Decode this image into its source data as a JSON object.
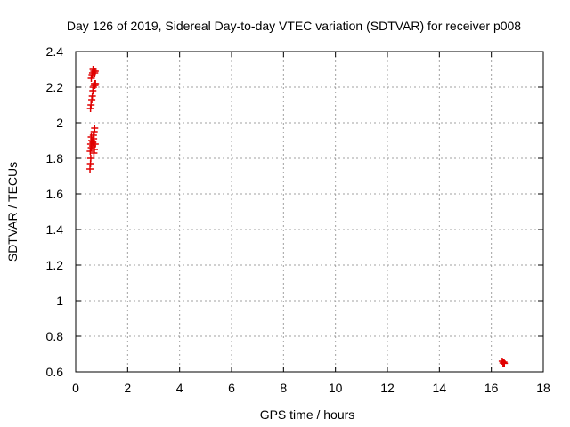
{
  "chart_data": {
    "type": "scatter",
    "title": "Day 126 of 2019, Sidereal Day-to-day VTEC variation (SDTVAR) for receiver p008",
    "xlabel": "GPS time / hours",
    "ylabel": "SDTVAR / TECUs",
    "xlim": [
      0,
      18
    ],
    "ylim": [
      0.6,
      2.4
    ],
    "xticks": [
      0,
      2,
      4,
      6,
      8,
      10,
      12,
      14,
      16,
      18
    ],
    "yticks": [
      0.6,
      0.8,
      1.0,
      1.2,
      1.4,
      1.6,
      1.8,
      2.0,
      2.2,
      2.4
    ],
    "ytick_labels": [
      "0.6",
      "0.8",
      "1",
      "1.2",
      "1.4",
      "1.6",
      "1.8",
      "2",
      "2.2",
      "2.4"
    ],
    "grid": true,
    "marker": "+",
    "marker_color": "#e00000",
    "series": [
      {
        "name": "p008",
        "points": [
          [
            0.55,
            1.74
          ],
          [
            0.57,
            1.77
          ],
          [
            0.58,
            1.8
          ],
          [
            0.56,
            1.84
          ],
          [
            0.6,
            1.86
          ],
          [
            0.58,
            1.88
          ],
          [
            0.62,
            1.9
          ],
          [
            0.6,
            1.92
          ],
          [
            0.65,
            1.87
          ],
          [
            0.66,
            1.89
          ],
          [
            0.7,
            1.83
          ],
          [
            0.72,
            1.85
          ],
          [
            0.68,
            1.93
          ],
          [
            0.71,
            1.95
          ],
          [
            0.73,
            1.97
          ],
          [
            0.69,
            1.91
          ],
          [
            0.75,
            1.88
          ],
          [
            0.57,
            2.08
          ],
          [
            0.59,
            2.1
          ],
          [
            0.62,
            2.13
          ],
          [
            0.64,
            2.15
          ],
          [
            0.66,
            2.18
          ],
          [
            0.68,
            2.2
          ],
          [
            0.7,
            2.21
          ],
          [
            0.72,
            2.22
          ],
          [
            0.74,
            2.21
          ],
          [
            0.76,
            2.22
          ],
          [
            0.6,
            2.25
          ],
          [
            0.63,
            2.27
          ],
          [
            0.65,
            2.28
          ],
          [
            0.67,
            2.3
          ],
          [
            0.7,
            2.29
          ],
          [
            0.73,
            2.28
          ],
          [
            0.75,
            2.29
          ],
          [
            16.42,
            0.66
          ],
          [
            16.45,
            0.65
          ],
          [
            16.48,
            0.655
          ],
          [
            16.5,
            0.648
          ]
        ]
      }
    ]
  }
}
